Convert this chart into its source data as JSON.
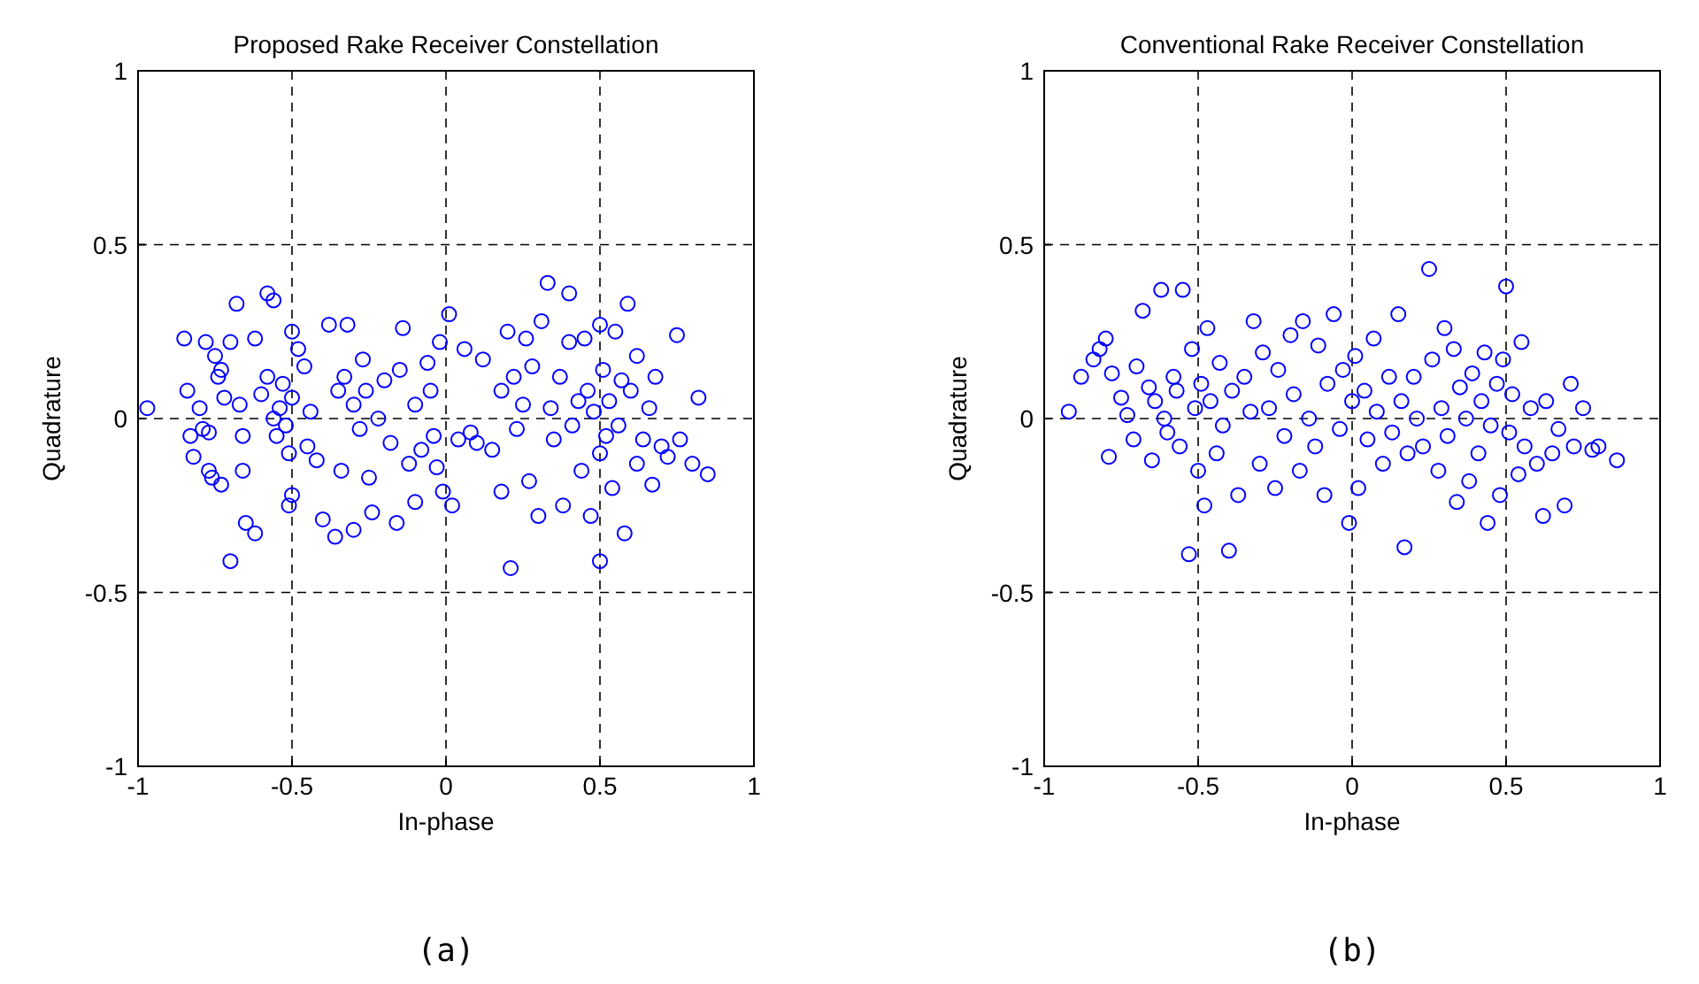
{
  "chart_data": [
    {
      "type": "scatter",
      "title": "Proposed Rake Receiver Constellation",
      "xlabel": "In-phase",
      "ylabel": "Quadrature",
      "annotations": [
        "(a)"
      ],
      "color": "#0000ff",
      "marker": "circle",
      "grid": true,
      "xlim": [
        -1,
        1
      ],
      "ylim": [
        -1,
        1
      ],
      "xticks": [
        -1,
        -0.5,
        0,
        0.5,
        1
      ],
      "yticks": [
        -1,
        -0.5,
        0,
        0.5,
        1
      ],
      "x": [
        -0.97,
        -0.85,
        -0.84,
        -0.83,
        -0.82,
        -0.8,
        -0.79,
        -0.77,
        -0.78,
        -0.75,
        -0.74,
        -0.73,
        -0.77,
        -0.76,
        -0.73,
        -0.72,
        -0.7,
        -0.68,
        -0.7,
        -0.67,
        -0.66,
        -0.66,
        -0.65,
        -0.62,
        -0.62,
        -0.6,
        -0.58,
        -0.58,
        -0.56,
        -0.56,
        -0.55,
        -0.54,
        -0.53,
        -0.52,
        -0.51,
        -0.5,
        -0.5,
        -0.51,
        -0.5,
        -0.48,
        -0.46,
        -0.45,
        -0.44,
        -0.42,
        -0.4,
        -0.38,
        -0.36,
        -0.35,
        -0.34,
        -0.33,
        -0.32,
        -0.3,
        -0.3,
        -0.28,
        -0.27,
        -0.26,
        -0.25,
        -0.24,
        -0.22,
        -0.2,
        -0.18,
        -0.16,
        -0.15,
        -0.14,
        -0.12,
        -0.1,
        -0.1,
        -0.08,
        -0.06,
        -0.05,
        -0.04,
        -0.03,
        -0.02,
        0.01,
        -0.01,
        0.02,
        0.04,
        0.06,
        0.08,
        0.1,
        0.12,
        0.15,
        0.18,
        0.18,
        0.2,
        0.21,
        0.22,
        0.23,
        0.25,
        0.26,
        0.27,
        0.28,
        0.3,
        0.31,
        0.33,
        0.34,
        0.35,
        0.37,
        0.38,
        0.4,
        0.4,
        0.41,
        0.43,
        0.44,
        0.45,
        0.46,
        0.47,
        0.48,
        0.5,
        0.5,
        0.5,
        0.51,
        0.52,
        0.53,
        0.54,
        0.55,
        0.56,
        0.57,
        0.58,
        0.59,
        0.6,
        0.62,
        0.62,
        0.64,
        0.66,
        0.67,
        0.68,
        0.7,
        0.72,
        0.75,
        0.76,
        0.8,
        0.82,
        0.85
      ],
      "values": [
        0.03,
        0.23,
        0.08,
        -0.05,
        -0.11,
        0.03,
        -0.03,
        -0.04,
        0.22,
        0.18,
        0.12,
        0.14,
        -0.15,
        -0.17,
        -0.19,
        0.06,
        -0.41,
        0.33,
        0.22,
        0.04,
        -0.05,
        -0.15,
        -0.3,
        -0.33,
        0.23,
        0.07,
        0.12,
        0.36,
        0.34,
        0,
        -0.05,
        0.03,
        0.1,
        -0.02,
        -0.1,
        0.06,
        -0.22,
        -0.25,
        0.25,
        0.2,
        0.15,
        -0.08,
        0.02,
        -0.12,
        -0.29,
        0.27,
        -0.34,
        0.08,
        -0.15,
        0.12,
        0.27,
        -0.32,
        0.04,
        -0.03,
        0.17,
        0.08,
        -0.17,
        -0.27,
        0,
        0.11,
        -0.07,
        -0.3,
        0.14,
        0.26,
        -0.13,
        0.04,
        -0.24,
        -0.09,
        0.16,
        0.08,
        -0.05,
        -0.14,
        0.22,
        0.3,
        -0.21,
        -0.25,
        -0.06,
        0.2,
        -0.04,
        -0.07,
        0.17,
        -0.09,
        0.08,
        -0.21,
        0.25,
        -0.43,
        0.12,
        -0.03,
        0.04,
        0.23,
        -0.18,
        0.15,
        -0.28,
        0.28,
        0.39,
        0.03,
        -0.06,
        0.12,
        -0.25,
        0.36,
        0.22,
        -0.02,
        0.05,
        -0.15,
        0.23,
        0.08,
        -0.28,
        0.02,
        -0.1,
        0.27,
        -0.41,
        0.14,
        -0.05,
        0.05,
        -0.2,
        0.25,
        -0.02,
        0.11,
        -0.33,
        0.33,
        0.08,
        -0.13,
        0.18,
        -0.06,
        0.03,
        -0.19,
        0.12,
        -0.08,
        -0.11,
        0.24,
        -0.06,
        -0.13,
        0.06,
        -0.16
      ]
    },
    {
      "type": "scatter",
      "title": "Conventional Rake Receiver Constellation",
      "xlabel": "In-phase",
      "ylabel": "Quadrature",
      "annotations": [
        "(b)"
      ],
      "color": "#0000ff",
      "marker": "circle",
      "grid": true,
      "xlim": [
        -1,
        1
      ],
      "ylim": [
        -1,
        1
      ],
      "xticks": [
        -1,
        -0.5,
        0,
        0.5,
        1
      ],
      "yticks": [
        -1,
        -0.5,
        0,
        0.5,
        1
      ],
      "x": [
        -0.92,
        -0.88,
        -0.84,
        -0.82,
        -0.8,
        -0.79,
        -0.78,
        -0.75,
        -0.73,
        -0.71,
        -0.7,
        -0.68,
        -0.66,
        -0.65,
        -0.64,
        -0.62,
        -0.61,
        -0.6,
        -0.58,
        -0.57,
        -0.56,
        -0.55,
        -0.53,
        -0.52,
        -0.51,
        -0.5,
        -0.49,
        -0.48,
        -0.47,
        -0.46,
        -0.44,
        -0.43,
        -0.42,
        -0.4,
        -0.39,
        -0.37,
        -0.35,
        -0.33,
        -0.32,
        -0.3,
        -0.29,
        -0.27,
        -0.25,
        -0.24,
        -0.22,
        -0.2,
        -0.19,
        -0.17,
        -0.16,
        -0.14,
        -0.12,
        -0.11,
        -0.09,
        -0.08,
        -0.06,
        -0.04,
        -0.03,
        -0.01,
        0,
        0.01,
        0.02,
        0.04,
        0.05,
        0.07,
        0.08,
        0.1,
        0.12,
        0.13,
        0.15,
        0.16,
        0.17,
        0.18,
        0.2,
        0.21,
        0.23,
        0.25,
        0.26,
        0.28,
        0.29,
        0.3,
        0.31,
        0.33,
        0.34,
        0.35,
        0.37,
        0.38,
        0.39,
        0.41,
        0.42,
        0.43,
        0.44,
        0.45,
        0.47,
        0.48,
        0.49,
        0.5,
        0.51,
        0.52,
        0.54,
        0.55,
        0.56,
        0.58,
        0.6,
        0.62,
        0.63,
        0.65,
        0.67,
        0.69,
        0.71,
        0.72,
        0.75,
        0.78,
        0.8,
        0.86
      ],
      "values": [
        0.02,
        0.12,
        0.17,
        0.2,
        0.23,
        -0.11,
        0.13,
        0.06,
        0.01,
        -0.06,
        0.15,
        0.31,
        0.09,
        -0.12,
        0.05,
        0.37,
        0,
        -0.04,
        0.12,
        0.08,
        -0.08,
        0.37,
        -0.39,
        0.2,
        0.03,
        -0.15,
        0.1,
        -0.25,
        0.26,
        0.05,
        -0.1,
        0.16,
        -0.02,
        -0.38,
        0.08,
        -0.22,
        0.12,
        0.02,
        0.28,
        -0.13,
        0.19,
        0.03,
        -0.2,
        0.14,
        -0.05,
        0.24,
        0.07,
        -0.15,
        0.28,
        0,
        -0.08,
        0.21,
        -0.22,
        0.1,
        0.3,
        -0.03,
        0.14,
        -0.3,
        0.05,
        0.18,
        -0.2,
        0.08,
        -0.06,
        0.23,
        0.02,
        -0.13,
        0.12,
        -0.04,
        0.3,
        0.05,
        -0.37,
        -0.1,
        0.12,
        0,
        -0.08,
        0.43,
        0.17,
        -0.15,
        0.03,
        0.26,
        -0.05,
        0.2,
        -0.24,
        0.09,
        0,
        -0.18,
        0.13,
        -0.1,
        0.05,
        0.19,
        -0.3,
        -0.02,
        0.1,
        -0.22,
        0.17,
        0.38,
        -0.04,
        0.07,
        -0.16,
        0.22,
        -0.08,
        0.03,
        -0.13,
        -0.28,
        0.05,
        -0.1,
        -0.03,
        -0.25,
        0.1,
        -0.08,
        0.03,
        -0.09,
        -0.08,
        -0.12
      ]
    }
  ]
}
